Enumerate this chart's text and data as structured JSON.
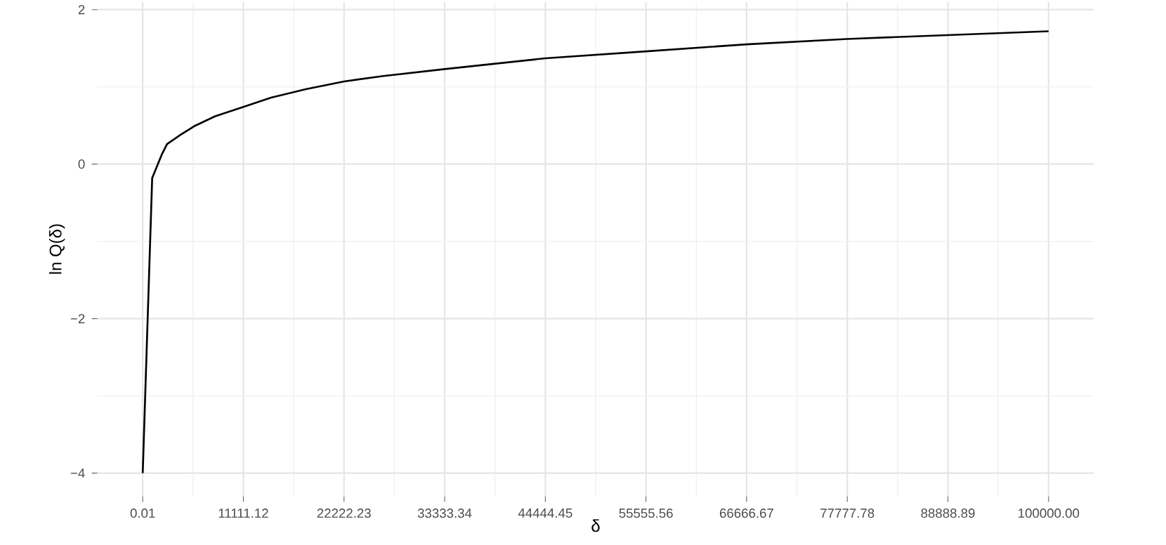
{
  "chart_data": {
    "type": "line",
    "xlabel": "δ",
    "ylabel": "ln Q(δ)",
    "x": [
      0.01,
      1045,
      2090,
      2690,
      4180,
      5670,
      8000,
      11111,
      14170,
      18000,
      22222,
      26560,
      33333,
      44444,
      55556,
      66667,
      77778,
      88889,
      100000
    ],
    "values": [
      -4,
      -0.18,
      0.12,
      0.26,
      0.38,
      0.49,
      0.62,
      0.74,
      0.86,
      0.97,
      1.07,
      1.14,
      1.23,
      1.37,
      1.46,
      1.55,
      1.62,
      1.67,
      1.72
    ],
    "color": "#000000",
    "line_style": "solid",
    "grid": true,
    "xlim": [
      -5000,
      105000
    ],
    "ylim": [
      -4.3,
      2.1
    ],
    "xticks": [
      0.01,
      11111.12,
      22222.23,
      33333.34,
      44444.45,
      55555.56,
      66666.67,
      77777.78,
      88888.89,
      {
        "value": 100000,
        "label": "100000.00"
      }
    ],
    "yticks": [
      {
        "value": -4,
        "label": "−4"
      },
      {
        "value": -2,
        "label": "−2"
      },
      0,
      2
    ]
  }
}
